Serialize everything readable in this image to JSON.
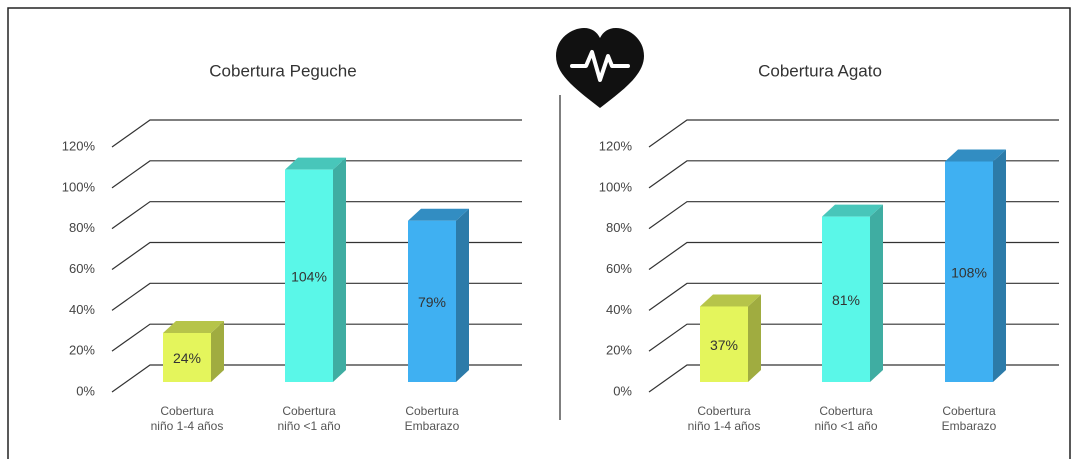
{
  "chart_data": [
    {
      "type": "bar",
      "title": "Cobertura Peguche",
      "categories": [
        "Cobertura\nniño 1-4 años",
        "Cobertura\nniño <1 año",
        "Cobertura\nEmbarazo"
      ],
      "values": [
        24,
        104,
        79
      ],
      "value_labels": [
        "24%",
        "104%",
        "79%"
      ],
      "colors": [
        "#e4f55c",
        "#5af7e8",
        "#3fb0f2"
      ],
      "ylim": [
        0,
        120
      ],
      "yticks": [
        {
          "value": 0,
          "label": "0%"
        },
        {
          "value": 20,
          "label": "20%"
        },
        {
          "value": 40,
          "label": "40%"
        },
        {
          "value": 60,
          "label": "60%"
        },
        {
          "value": 80,
          "label": "80%"
        },
        {
          "value": 100,
          "label": "100%"
        },
        {
          "value": 120,
          "label": "120%"
        }
      ],
      "grid": true
    },
    {
      "type": "bar",
      "title": "Cobertura Agato",
      "categories": [
        "Cobertura\nniño 1-4 años",
        "Cobertura\nniño <1 año",
        "Cobertura\nEmbarazo"
      ],
      "values": [
        37,
        81,
        108
      ],
      "value_labels": [
        "37%",
        "81%",
        "108%"
      ],
      "colors": [
        "#e4f55c",
        "#5af7e8",
        "#3fb0f2"
      ],
      "ylim": [
        0,
        120
      ],
      "yticks": [
        {
          "value": 0,
          "label": "0%"
        },
        {
          "value": 20,
          "label": "20%"
        },
        {
          "value": 40,
          "label": "40%"
        },
        {
          "value": 60,
          "label": "60%"
        },
        {
          "value": 80,
          "label": "80%"
        },
        {
          "value": 100,
          "label": "100%"
        },
        {
          "value": 120,
          "label": "120%"
        }
      ],
      "grid": true
    }
  ]
}
